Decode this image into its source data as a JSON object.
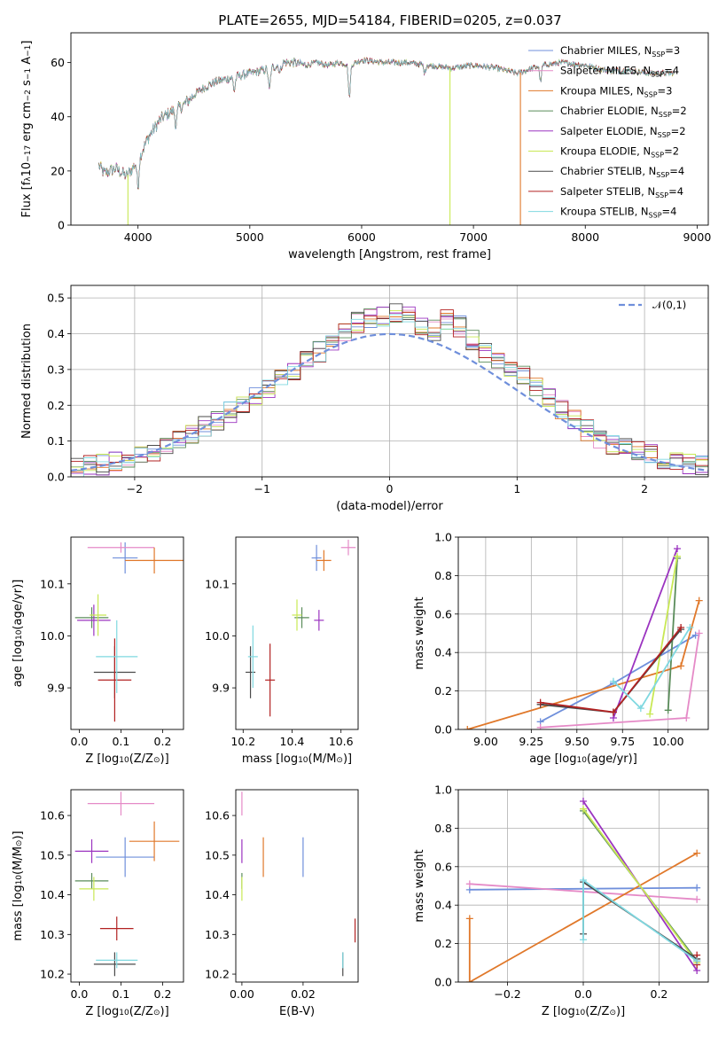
{
  "title": "PLATE=2655, MJD=54184, FIBERID=0205, z=0.037",
  "series": [
    {
      "name": "Chabrier MILES",
      "nssp": "3",
      "color": "#6f8fdb"
    },
    {
      "name": "Salpeter MILES",
      "nssp": "4",
      "color": "#e58ac7"
    },
    {
      "name": "Kroupa MILES",
      "nssp": "3",
      "color": "#e0782a"
    },
    {
      "name": "Chabrier ELODIE",
      "nssp": "2",
      "color": "#5a8c5a"
    },
    {
      "name": "Salpeter ELODIE",
      "nssp": "2",
      "color": "#9b34c0"
    },
    {
      "name": "Kroupa ELODIE",
      "nssp": "2",
      "color": "#c8e854"
    },
    {
      "name": "Chabrier STELIB",
      "nssp": "4",
      "color": "#4a4a4a"
    },
    {
      "name": "Salpeter STELIB",
      "nssp": "4",
      "color": "#b22222"
    },
    {
      "name": "Kroupa STELIB",
      "nssp": "4",
      "color": "#7fd8e0"
    }
  ],
  "chart_data": [
    {
      "id": "spectrum",
      "type": "line",
      "xlabel": "wavelength [Angstrom, rest frame]",
      "ylabel_parts": [
        "Flux [f",
        "λ",
        "10",
        "−17",
        " erg cm",
        "−2",
        " s",
        "−1",
        " A",
        "−1",
        "]"
      ],
      "xlim": [
        3400,
        9100
      ],
      "ylim": [
        0,
        71
      ],
      "xticks": [
        4000,
        5000,
        6000,
        7000,
        8000,
        9000
      ],
      "yticks": [
        0,
        20,
        40,
        60
      ],
      "legend_position": "top-right",
      "continuum_x": [
        3650,
        3700,
        3800,
        3900,
        4000,
        4100,
        4200,
        4300,
        4400,
        4500,
        4600,
        4700,
        4800,
        4900,
        5000,
        5100,
        5200,
        5300,
        5400,
        5500,
        5600,
        5700,
        5800,
        5900,
        6000,
        6200,
        6400,
        6600,
        6800,
        7000,
        7200,
        7400,
        7600,
        7800,
        8000,
        8200,
        8400,
        8600,
        8800
      ],
      "continuum_y": [
        22,
        19,
        21,
        18,
        24,
        33,
        39,
        42,
        44,
        48,
        51,
        53,
        54,
        55,
        56,
        57,
        58,
        60,
        60,
        59,
        60,
        59,
        60,
        59,
        61,
        60,
        60,
        59,
        58,
        59,
        58,
        56,
        59,
        60,
        59,
        57,
        57,
        56,
        56
      ],
      "dropouts": [
        {
          "series": "Kroupa ELODIE",
          "x": 3910,
          "y": 0
        },
        {
          "series": "Kroupa ELODIE",
          "x": 6790,
          "y": 0
        },
        {
          "series": "Kroupa MILES",
          "x": 7420,
          "y": 0
        }
      ]
    },
    {
      "id": "residuals",
      "type": "histogram",
      "xlabel": "(data-model)/error",
      "ylabel": "Normed distribution",
      "xlim": [
        -2.5,
        2.5
      ],
      "ylim": [
        0,
        0.535
      ],
      "xticks": [
        -2,
        -1,
        0,
        1,
        2
      ],
      "yticks": [
        0.0,
        0.1,
        0.2,
        0.3,
        0.4,
        0.5
      ],
      "grid": true,
      "bin_edges_start": -2.5,
      "bin_width": 0.1,
      "base_hist": [
        0.025,
        0.03,
        0.035,
        0.04,
        0.05,
        0.06,
        0.07,
        0.09,
        0.11,
        0.12,
        0.14,
        0.16,
        0.18,
        0.2,
        0.22,
        0.25,
        0.27,
        0.3,
        0.33,
        0.35,
        0.37,
        0.4,
        0.43,
        0.44,
        0.45,
        0.46,
        0.45,
        0.42,
        0.41,
        0.44,
        0.42,
        0.38,
        0.35,
        0.32,
        0.3,
        0.28,
        0.25,
        0.22,
        0.19,
        0.16,
        0.13,
        0.11,
        0.09,
        0.08,
        0.07,
        0.06,
        0.05,
        0.04,
        0.035,
        0.03
      ],
      "reference_curve": {
        "label": "𝒩(0,1)",
        "color": "#6f8fdb"
      }
    },
    {
      "id": "age-vs-Z",
      "type": "errorbar",
      "xlabel_parts": [
        "Z [log",
        "10",
        "(Z/Z",
        "⊙",
        ")]"
      ],
      "ylabel_parts": [
        "age  [log",
        "10",
        "(age/yr)]"
      ],
      "xlim": [
        -0.02,
        0.25
      ],
      "ylim": [
        9.82,
        10.19
      ],
      "xticks": [
        0.0,
        0.1,
        0.2
      ],
      "yticks": [
        9.9,
        10.0,
        10.1
      ],
      "points": [
        {
          "series": "Chabrier MILES",
          "x": 0.11,
          "y": 10.15,
          "xerr": 0.03,
          "yerr": 0.03
        },
        {
          "series": "Salpeter MILES",
          "x": 0.1,
          "y": 10.17,
          "xerr": 0.08,
          "yerr": 0.01
        },
        {
          "series": "Kroupa MILES",
          "x": 0.18,
          "y": 10.145,
          "xerr": 0.07,
          "yerr": 0.025
        },
        {
          "series": "Chabrier ELODIE",
          "x": 0.03,
          "y": 10.035,
          "xerr": 0.04,
          "yerr": 0.02
        },
        {
          "series": "Salpeter ELODIE",
          "x": 0.035,
          "y": 10.03,
          "xerr": 0.04,
          "yerr": 0.03
        },
        {
          "series": "Kroupa ELODIE",
          "x": 0.045,
          "y": 10.04,
          "xerr": 0.02,
          "yerr": 0.04
        },
        {
          "series": "Chabrier STELIB",
          "x": 0.085,
          "y": 9.93,
          "xerr": 0.05,
          "yerr": 0.05
        },
        {
          "series": "Salpeter STELIB",
          "x": 0.085,
          "y": 9.915,
          "xerr": 0.04,
          "yerr": 0.08
        },
        {
          "series": "Kroupa STELIB",
          "x": 0.09,
          "y": 9.96,
          "xerr": 0.05,
          "yerr": 0.07
        }
      ]
    },
    {
      "id": "age-vs-mass",
      "type": "errorbar",
      "xlabel_parts": [
        "mass [log",
        "10",
        "(M/M",
        "⊙",
        ")]"
      ],
      "xlim": [
        10.17,
        10.67
      ],
      "ylim": [
        9.82,
        10.19
      ],
      "xticks": [
        10.2,
        10.4,
        10.6
      ],
      "yticks": [
        9.9,
        10.0,
        10.1
      ],
      "points": [
        {
          "series": "Chabrier MILES",
          "x": 10.5,
          "y": 10.15,
          "xerr": 0.02,
          "yerr": 0.025
        },
        {
          "series": "Salpeter MILES",
          "x": 10.63,
          "y": 10.17,
          "xerr": 0.03,
          "yerr": 0.015
        },
        {
          "series": "Kroupa MILES",
          "x": 10.53,
          "y": 10.145,
          "xerr": 0.03,
          "yerr": 0.02
        },
        {
          "series": "Chabrier ELODIE",
          "x": 10.44,
          "y": 10.035,
          "xerr": 0.03,
          "yerr": 0.02
        },
        {
          "series": "Salpeter ELODIE",
          "x": 10.51,
          "y": 10.03,
          "xerr": 0.02,
          "yerr": 0.02
        },
        {
          "series": "Kroupa ELODIE",
          "x": 10.42,
          "y": 10.04,
          "xerr": 0.02,
          "yerr": 0.03
        },
        {
          "series": "Chabrier STELIB",
          "x": 10.23,
          "y": 9.93,
          "xerr": 0.02,
          "yerr": 0.05
        },
        {
          "series": "Salpeter STELIB",
          "x": 10.31,
          "y": 9.915,
          "xerr": 0.02,
          "yerr": 0.07
        },
        {
          "series": "Kroupa STELIB",
          "x": 10.24,
          "y": 9.96,
          "xerr": 0.02,
          "yerr": 0.06
        }
      ]
    },
    {
      "id": "weight-vs-age",
      "type": "line",
      "xlabel_parts": [
        "age  [log",
        "10",
        "(age/yr)]"
      ],
      "ylabel": "mass weight",
      "xlim": [
        8.85,
        10.22
      ],
      "ylim": [
        0,
        1
      ],
      "xticks": [
        9.0,
        9.25,
        9.5,
        9.75,
        10.0
      ],
      "xticklabels": [
        "9.00",
        "9.25",
        "9.50",
        "9.75",
        "10.00"
      ],
      "yticks": [
        0.0,
        0.2,
        0.4,
        0.6,
        0.8,
        1.0
      ],
      "grid": true,
      "lines": [
        {
          "series": "Chabrier MILES",
          "x": [
            9.3,
            9.7,
            10.15
          ],
          "y": [
            0.04,
            0.24,
            0.49
          ]
        },
        {
          "series": "Salpeter MILES",
          "x": [
            9.3,
            10.1,
            10.17
          ],
          "y": [
            0.01,
            0.06,
            0.5
          ]
        },
        {
          "series": "Kroupa MILES",
          "x": [
            8.9,
            10.07,
            10.17
          ],
          "y": [
            0.0,
            0.33,
            0.67
          ]
        },
        {
          "series": "Chabrier ELODIE",
          "x": [
            10.0,
            10.05
          ],
          "y": [
            0.1,
            0.89
          ]
        },
        {
          "series": "Salpeter ELODIE",
          "x": [
            9.7,
            10.05
          ],
          "y": [
            0.06,
            0.94
          ]
        },
        {
          "series": "Kroupa ELODIE",
          "x": [
            9.9,
            10.05
          ],
          "y": [
            0.08,
            0.9
          ]
        },
        {
          "series": "Chabrier STELIB",
          "x": [
            9.3,
            9.7,
            10.07
          ],
          "y": [
            0.13,
            0.09,
            0.52
          ]
        },
        {
          "series": "Salpeter STELIB",
          "x": [
            9.3,
            9.7,
            10.07
          ],
          "y": [
            0.14,
            0.09,
            0.53
          ]
        },
        {
          "series": "Kroupa STELIB",
          "x": [
            9.7,
            9.85,
            10.12
          ],
          "y": [
            0.25,
            0.11,
            0.53
          ]
        }
      ]
    },
    {
      "id": "mass-vs-Z",
      "type": "errorbar",
      "xlabel_parts": [
        "Z [log",
        "10",
        "(Z/Z",
        "⊙",
        ")]"
      ],
      "ylabel_parts": [
        "mass [log",
        "10",
        "(M/M",
        "⊙",
        ")]"
      ],
      "xlim": [
        -0.02,
        0.25
      ],
      "ylim": [
        10.18,
        10.665
      ],
      "xticks": [
        0.0,
        0.1,
        0.2
      ],
      "yticks": [
        10.2,
        10.3,
        10.4,
        10.5,
        10.6
      ],
      "points": [
        {
          "series": "Chabrier MILES",
          "x": 0.11,
          "y": 10.495,
          "xerr": 0.07,
          "yerr": 0.05
        },
        {
          "series": "Salpeter MILES",
          "x": 0.1,
          "y": 10.63,
          "xerr": 0.08,
          "yerr": 0.03
        },
        {
          "series": "Kroupa MILES",
          "x": 0.18,
          "y": 10.535,
          "xerr": 0.06,
          "yerr": 0.05
        },
        {
          "series": "Chabrier ELODIE",
          "x": 0.03,
          "y": 10.435,
          "xerr": 0.04,
          "yerr": 0.02
        },
        {
          "series": "Salpeter ELODIE",
          "x": 0.03,
          "y": 10.51,
          "xerr": 0.04,
          "yerr": 0.03
        },
        {
          "series": "Kroupa ELODIE",
          "x": 0.035,
          "y": 10.415,
          "xerr": 0.035,
          "yerr": 0.03
        },
        {
          "series": "Chabrier STELIB",
          "x": 0.085,
          "y": 10.225,
          "xerr": 0.05,
          "yerr": 0.03
        },
        {
          "series": "Salpeter STELIB",
          "x": 0.09,
          "y": 10.315,
          "xerr": 0.04,
          "yerr": 0.03
        },
        {
          "series": "Kroupa STELIB",
          "x": 0.09,
          "y": 10.235,
          "xerr": 0.05,
          "yerr": 0.02
        }
      ]
    },
    {
      "id": "mass-vs-EBV",
      "type": "errorbar",
      "xlabel": "E(B-V)",
      "xlim": [
        -0.002,
        0.038
      ],
      "ylim": [
        10.18,
        10.665
      ],
      "xticks": [
        0.0,
        0.02
      ],
      "yticks": [
        10.2,
        10.3,
        10.4,
        10.5,
        10.6
      ],
      "points": [
        {
          "series": "Chabrier MILES",
          "x": 0.02,
          "y": 10.495,
          "xerr": 0.0,
          "yerr": 0.05
        },
        {
          "series": "Salpeter MILES",
          "x": 0.0,
          "y": 10.63,
          "xerr": 0.0,
          "yerr": 0.03
        },
        {
          "series": "Kroupa MILES",
          "x": 0.007,
          "y": 10.495,
          "xerr": 0.0,
          "yerr": 0.05
        },
        {
          "series": "Chabrier ELODIE",
          "x": 0.0,
          "y": 10.435,
          "xerr": 0.0,
          "yerr": 0.02
        },
        {
          "series": "Salpeter ELODIE",
          "x": 0.0,
          "y": 10.51,
          "xerr": 0.0,
          "yerr": 0.03
        },
        {
          "series": "Kroupa ELODIE",
          "x": 0.0,
          "y": 10.415,
          "xerr": 0.0,
          "yerr": 0.03
        },
        {
          "series": "Chabrier STELIB",
          "x": 0.033,
          "y": 10.225,
          "xerr": 0.0,
          "yerr": 0.03
        },
        {
          "series": "Salpeter STELIB",
          "x": 0.037,
          "y": 10.31,
          "xerr": 0.0,
          "yerr": 0.03
        },
        {
          "series": "Kroupa STELIB",
          "x": 0.033,
          "y": 10.235,
          "xerr": 0.0,
          "yerr": 0.02
        }
      ]
    },
    {
      "id": "weight-vs-Z",
      "type": "line",
      "xlabel_parts": [
        "Z [log",
        "10",
        "(Z/Z",
        "⊙",
        ")]"
      ],
      "ylabel": "mass weight",
      "xlim": [
        -0.33,
        0.33
      ],
      "ylim": [
        0,
        1
      ],
      "xticks": [
        -0.2,
        0.0,
        0.2
      ],
      "xticklabels": [
        "−0.2",
        "0.0",
        "0.2"
      ],
      "yticks": [
        0.0,
        0.2,
        0.4,
        0.6,
        0.8,
        1.0
      ],
      "grid": true,
      "lines": [
        {
          "series": "Chabrier MILES",
          "x": [
            -0.3,
            0.3
          ],
          "y": [
            0.48,
            0.49
          ]
        },
        {
          "series": "Salpeter MILES",
          "x": [
            -0.3,
            0.3
          ],
          "y": [
            0.51,
            0.43
          ]
        },
        {
          "series": "Kroupa MILES",
          "x": [
            -0.3,
            -0.3,
            0.3
          ],
          "y": [
            0.33,
            0.0,
            0.67
          ]
        },
        {
          "series": "Chabrier ELODIE",
          "x": [
            0.0,
            0.3
          ],
          "y": [
            0.89,
            0.11
          ]
        },
        {
          "series": "Salpeter ELODIE",
          "x": [
            0.0,
            0.3
          ],
          "y": [
            0.94,
            0.06
          ]
        },
        {
          "series": "Kroupa ELODIE",
          "x": [
            0.0,
            0.3
          ],
          "y": [
            0.9,
            0.1
          ]
        },
        {
          "series": "Chabrier STELIB",
          "x": [
            0.0,
            0.0,
            0.3
          ],
          "y": [
            0.25,
            0.52,
            0.12
          ]
        },
        {
          "series": "Salpeter STELIB",
          "x": [
            0.3,
            0.3
          ],
          "y": [
            0.14,
            0.09
          ]
        },
        {
          "series": "Kroupa STELIB",
          "x": [
            0.0,
            0.0,
            0.3
          ],
          "y": [
            0.22,
            0.53,
            0.11
          ]
        }
      ]
    }
  ]
}
